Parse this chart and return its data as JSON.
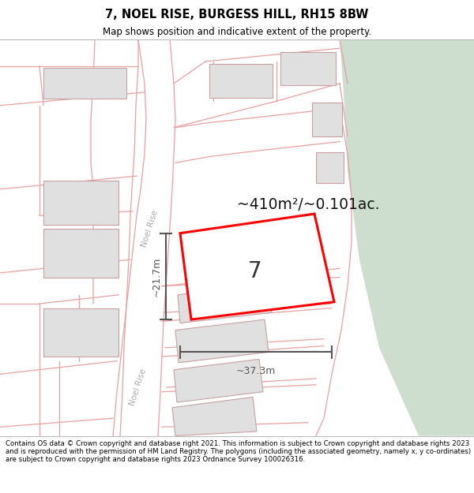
{
  "title_line1": "7, NOEL RISE, BURGESS HILL, RH15 8BW",
  "title_line2": "Map shows position and indicative extent of the property.",
  "footer_text": "Contains OS data © Crown copyright and database right 2021. This information is subject to Crown copyright and database rights 2023 and is reproduced with the permission of HM Land Registry. The polygons (including the associated geometry, namely x, y co-ordinates) are subject to Crown copyright and database rights 2023 Ordnance Survey 100026316.",
  "area_label": "~410m²/~0.101ac.",
  "number_label": "7",
  "dim_width_label": "~37.3m",
  "dim_height_label": "~21.7m",
  "road_label": "Noel Rise",
  "bg_color": "#ffffff",
  "map_bg": "#ffffff",
  "green_area_color": "#cddece",
  "road_outline_color": "#e8a0a0",
  "building_fill": "#e0e0e0",
  "building_edge": "#c8a0a0",
  "highlight_poly_color": "#ff0000",
  "highlight_poly_fill": "#ffffff",
  "dim_line_color": "#555555",
  "title_fontsize": 10.5,
  "subtitle_fontsize": 8.5,
  "footer_fontsize": 6.2
}
